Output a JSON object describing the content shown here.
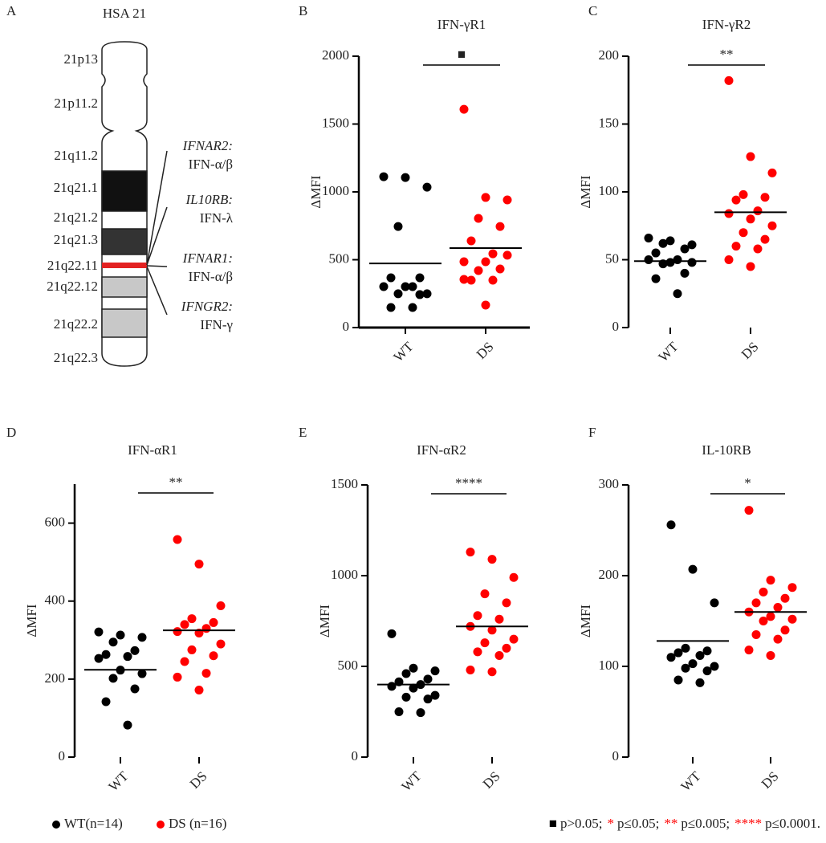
{
  "panel_a": {
    "letter": "A",
    "title": "HSA 21",
    "bands": [
      "21p13",
      "21p11.2",
      "21q11.2",
      "21q21.1",
      "21q21.2",
      "21q21.3",
      "21q22.11",
      "21q22.12",
      "21q22.2",
      "21q22.3"
    ],
    "genes": [
      {
        "gene": "IFNAR2:",
        "ligand": "IFN-α/β"
      },
      {
        "gene": "IL10RB:",
        "ligand": "IFN-λ"
      },
      {
        "gene": "IFNAR1:",
        "ligand": "IFN-α/β"
      },
      {
        "gene": "IFNGR2:",
        "ligand": "IFN-γ"
      }
    ]
  },
  "chart_data": [
    {
      "type": "strip",
      "letter": "B",
      "title": "IFN-γR1",
      "y_label": "ΔMFI",
      "categories": [
        "WT",
        "DS"
      ],
      "series": [
        {
          "name": "WT",
          "color": "#000000",
          "values": [
            1112,
            1106,
            1035,
            745,
            367,
            367,
            302,
            302,
            302,
            249,
            249,
            243,
            148,
            148
          ]
        },
        {
          "name": "DS",
          "color": "#ff0000",
          "values": [
            1609,
            959,
            941,
            805,
            745,
            639,
            544,
            485,
            485,
            533,
            420,
            432,
            349,
            349,
            355,
            166
          ]
        }
      ],
      "means": [
        473,
        586
      ],
      "significance": "■",
      "significance_color": "#000000",
      "x_axis": true,
      "ylim": [
        0,
        2000
      ],
      "yticks": [
        0,
        500,
        1000,
        1500,
        2000
      ]
    },
    {
      "type": "strip",
      "letter": "C",
      "title": "IFN-γR2",
      "y_label": "ΔMFI",
      "categories": [
        "WT",
        "DS"
      ],
      "series": [
        {
          "name": "WT",
          "color": "#000000",
          "values": [
            66,
            64,
            61,
            62,
            58,
            55,
            50,
            50,
            48,
            48,
            47,
            40,
            36,
            25
          ]
        },
        {
          "name": "DS",
          "color": "#ff0000",
          "values": [
            182,
            126,
            114,
            98,
            96,
            94,
            86,
            84,
            80,
            75,
            70,
            65,
            60,
            58,
            50,
            45
          ]
        }
      ],
      "means": [
        49,
        85
      ],
      "significance": "**",
      "significance_color": "#ff0000",
      "x_axis": false,
      "ylim": [
        0,
        200
      ],
      "yticks": [
        0,
        50,
        100,
        150,
        200
      ]
    },
    {
      "type": "strip",
      "letter": "D",
      "title": "IFN-αR1",
      "y_label": "ΔMFI",
      "categories": [
        "WT",
        "DS"
      ],
      "series": [
        {
          "name": "WT",
          "color": "#000000",
          "values": [
            321,
            313,
            307,
            295,
            273,
            263,
            258,
            253,
            223,
            214,
            202,
            175,
            142,
            82
          ]
        },
        {
          "name": "DS",
          "color": "#ff0000",
          "values": [
            558,
            495,
            388,
            355,
            345,
            340,
            330,
            322,
            318,
            290,
            275,
            260,
            245,
            215,
            205,
            172
          ]
        }
      ],
      "means": [
        224,
        325
      ],
      "significance": "**",
      "significance_color": "#ff0000",
      "x_axis": false,
      "ylim": [
        0,
        700
      ],
      "yticks": [
        0,
        200,
        400,
        600
      ]
    },
    {
      "type": "strip",
      "letter": "E",
      "title": "IFN-αR2",
      "y_label": "ΔMFI",
      "categories": [
        "WT",
        "DS"
      ],
      "series": [
        {
          "name": "WT",
          "color": "#000000",
          "values": [
            680,
            490,
            475,
            460,
            430,
            415,
            400,
            390,
            380,
            340,
            330,
            320,
            250,
            245
          ]
        },
        {
          "name": "DS",
          "color": "#ff0000",
          "values": [
            1130,
            1090,
            990,
            900,
            850,
            780,
            760,
            720,
            700,
            650,
            630,
            600,
            580,
            560,
            480,
            470
          ]
        }
      ],
      "means": [
        400,
        720
      ],
      "significance": "****",
      "significance_color": "#ff0000",
      "x_axis": false,
      "ylim": [
        0,
        1500
      ],
      "yticks": [
        0,
        500,
        1000,
        1500
      ]
    },
    {
      "type": "strip",
      "letter": "F",
      "title": "IL-10RB",
      "y_label": "ΔMFI",
      "categories": [
        "WT",
        "DS"
      ],
      "series": [
        {
          "name": "WT",
          "color": "#000000",
          "values": [
            256,
            207,
            170,
            120,
            117,
            115,
            112,
            110,
            103,
            100,
            98,
            95,
            85,
            82
          ]
        },
        {
          "name": "DS",
          "color": "#ff0000",
          "values": [
            272,
            195,
            187,
            182,
            175,
            170,
            165,
            160,
            155,
            152,
            150,
            140,
            135,
            130,
            118,
            112
          ]
        }
      ],
      "means": [
        128,
        160
      ],
      "significance": "*",
      "significance_color": "#ff0000",
      "x_axis": false,
      "ylim": [
        0,
        300
      ],
      "yticks": [
        0,
        100,
        200,
        300
      ]
    }
  ],
  "legend": [
    {
      "label": "WT(n=14)",
      "color": "#000000"
    },
    {
      "label": "DS (n=16)",
      "color": "#ff0000"
    }
  ],
  "footnote": [
    {
      "symbol": "■",
      "color": "#000000",
      "text": "p>0.05;"
    },
    {
      "symbol": "*",
      "color": "#ff0000",
      "text": "p≤0.05;"
    },
    {
      "symbol": "**",
      "color": "#ff0000",
      "text": "p≤0.005;"
    },
    {
      "symbol": "****",
      "color": "#ff0000",
      "text": "p≤0.0001."
    }
  ]
}
